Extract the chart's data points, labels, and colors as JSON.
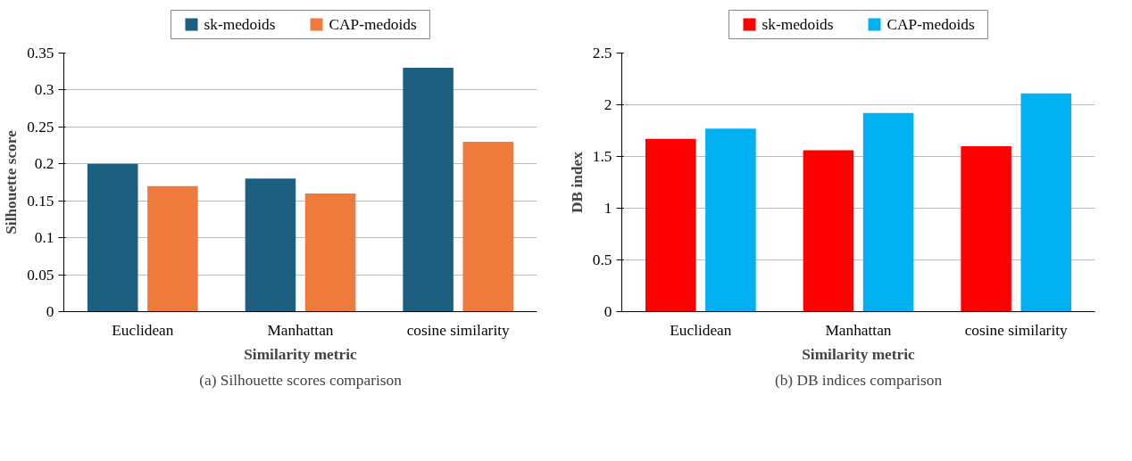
{
  "chart_data": [
    {
      "type": "bar",
      "categories": [
        "Euclidean",
        "Manhattan",
        "cosine similarity"
      ],
      "xlabel": "Similarity metric",
      "ylabel": "Silhouette score",
      "ylim": [
        0,
        0.35
      ],
      "yticks": [
        0,
        0.05,
        0.1,
        0.15,
        0.2,
        0.25,
        0.3,
        0.35
      ],
      "grid": "y",
      "legend": "top",
      "annotations": [
        "(a) Silhouette scores comparison"
      ],
      "series": [
        {
          "name": "sk-medoids",
          "color": "#1d5f80",
          "values": [
            0.2,
            0.18,
            0.33
          ]
        },
        {
          "name": "CAP-medoids",
          "color": "#ee7a3c",
          "values": [
            0.17,
            0.16,
            0.23
          ]
        }
      ]
    },
    {
      "type": "bar",
      "categories": [
        "Euclidean",
        "Manhattan",
        "cosine similarity"
      ],
      "xlabel": "Similarity metric",
      "ylabel": "DB index",
      "ylim": [
        0,
        2.5
      ],
      "yticks": [
        0,
        0.5,
        1,
        1.5,
        2,
        2.5
      ],
      "grid": "y",
      "legend": "top",
      "annotations": [
        "(b) DB indices comparison"
      ],
      "series": [
        {
          "name": "sk-medoids",
          "color": "#ff0000",
          "values": [
            1.67,
            1.56,
            1.6
          ]
        },
        {
          "name": "CAP-medoids",
          "color": "#00b0f0",
          "values": [
            1.77,
            1.92,
            2.11
          ]
        }
      ]
    }
  ]
}
